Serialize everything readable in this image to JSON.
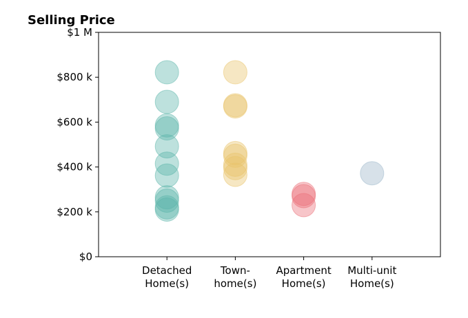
{
  "chart_data": {
    "type": "scatter",
    "title": "Selling Price",
    "xlabel": "",
    "ylabel": "",
    "ylim": [
      0,
      1000000
    ],
    "y_ticks": [
      {
        "value": 0,
        "label": "$0"
      },
      {
        "value": 200000,
        "label": "$200 k"
      },
      {
        "value": 400000,
        "label": "$400 k"
      },
      {
        "value": 600000,
        "label": "$600 k"
      },
      {
        "value": 800000,
        "label": "$800 k"
      },
      {
        "value": 1000000,
        "label": "$1 M"
      }
    ],
    "categories": [
      {
        "label": [
          "Detached",
          "Home(s)"
        ],
        "color": "#5bb5a9"
      },
      {
        "label": [
          "Town-",
          "home(s)"
        ],
        "color": "#e9c46a"
      },
      {
        "label": [
          "Apartment",
          "Home(s)"
        ],
        "color": "#ec6f78"
      },
      {
        "label": [
          "Multi-unit",
          "Home(s)"
        ],
        "color": "#9ab5c9"
      }
    ],
    "xlim": [
      -1,
      4
    ],
    "grid": false,
    "points": [
      {
        "category": 0,
        "y": 822000
      },
      {
        "category": 0,
        "y": 690000
      },
      {
        "category": 0,
        "y": 585000
      },
      {
        "category": 0,
        "y": 572000
      },
      {
        "category": 0,
        "y": 492000
      },
      {
        "category": 0,
        "y": 415000
      },
      {
        "category": 0,
        "y": 362000
      },
      {
        "category": 0,
        "y": 265000
      },
      {
        "category": 0,
        "y": 250000
      },
      {
        "category": 0,
        "y": 220000
      },
      {
        "category": 0,
        "y": 210000
      },
      {
        "category": 1,
        "y": 822000
      },
      {
        "category": 1,
        "y": 675000
      },
      {
        "category": 1,
        "y": 670000
      },
      {
        "category": 1,
        "y": 462000
      },
      {
        "category": 1,
        "y": 450000
      },
      {
        "category": 1,
        "y": 410000
      },
      {
        "category": 1,
        "y": 395000
      },
      {
        "category": 1,
        "y": 365000
      },
      {
        "category": 2,
        "y": 280000
      },
      {
        "category": 2,
        "y": 270000
      },
      {
        "category": 2,
        "y": 230000
      },
      {
        "category": 3,
        "y": 372000
      }
    ]
  }
}
